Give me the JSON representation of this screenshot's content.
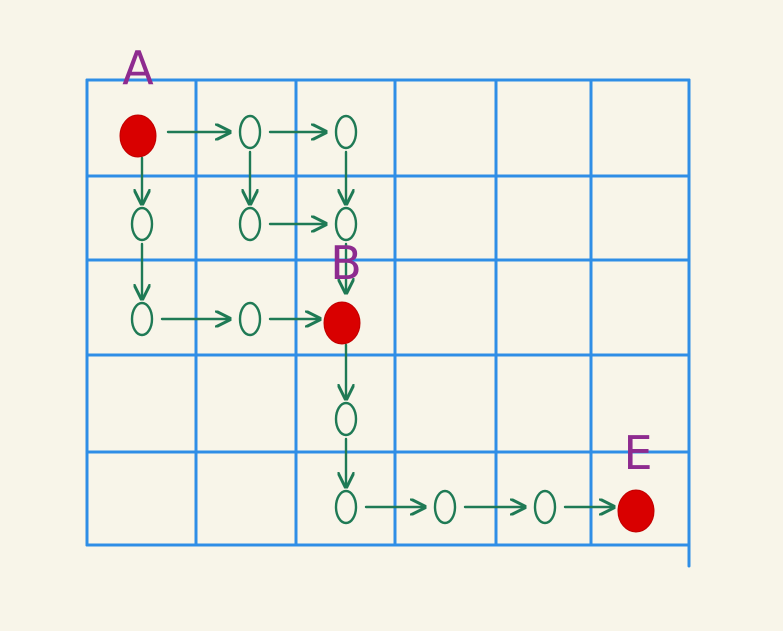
{
  "colors": {
    "background": "#f8f5e9",
    "grid": "#2f8ee6",
    "path": "#1f7a55",
    "key_point": "#d90000",
    "label": "#8e2b8f"
  },
  "grid": {
    "columns": 6,
    "rows": 5
  },
  "key_points": [
    {
      "id": "start",
      "label": "A",
      "col": 0,
      "row": 0
    },
    {
      "id": "middle",
      "label": "B",
      "col": 2,
      "row": 2
    },
    {
      "id": "end",
      "label": "E",
      "col": 5,
      "row": 4
    }
  ],
  "path_nodes": [
    {
      "col": 1,
      "row": 0
    },
    {
      "col": 2,
      "row": 0
    },
    {
      "col": 0,
      "row": 1
    },
    {
      "col": 1,
      "row": 1
    },
    {
      "col": 2,
      "row": 1
    },
    {
      "col": 0,
      "row": 2
    },
    {
      "col": 1,
      "row": 2
    },
    {
      "col": 2,
      "row": 3
    },
    {
      "col": 2,
      "row": 4
    },
    {
      "col": 3,
      "row": 4
    },
    {
      "col": 4,
      "row": 4
    }
  ],
  "arrows": [
    {
      "from": [
        0,
        0
      ],
      "to": [
        1,
        0
      ]
    },
    {
      "from": [
        1,
        0
      ],
      "to": [
        2,
        0
      ]
    },
    {
      "from": [
        0,
        0
      ],
      "to": [
        0,
        1
      ]
    },
    {
      "from": [
        1,
        0
      ],
      "to": [
        1,
        1
      ]
    },
    {
      "from": [
        2,
        0
      ],
      "to": [
        2,
        1
      ]
    },
    {
      "from": [
        1,
        1
      ],
      "to": [
        2,
        1
      ]
    },
    {
      "from": [
        0,
        1
      ],
      "to": [
        0,
        2
      ]
    },
    {
      "from": [
        0,
        2
      ],
      "to": [
        1,
        2
      ]
    },
    {
      "from": [
        1,
        2
      ],
      "to": [
        2,
        2
      ]
    },
    {
      "from": [
        2,
        1
      ],
      "to": [
        2,
        2
      ]
    },
    {
      "from": [
        2,
        2
      ],
      "to": [
        2,
        3
      ]
    },
    {
      "from": [
        2,
        3
      ],
      "to": [
        2,
        4
      ]
    },
    {
      "from": [
        2,
        4
      ],
      "to": [
        3,
        4
      ]
    },
    {
      "from": [
        3,
        4
      ],
      "to": [
        4,
        4
      ]
    },
    {
      "from": [
        4,
        4
      ],
      "to": [
        5,
        4
      ]
    }
  ]
}
